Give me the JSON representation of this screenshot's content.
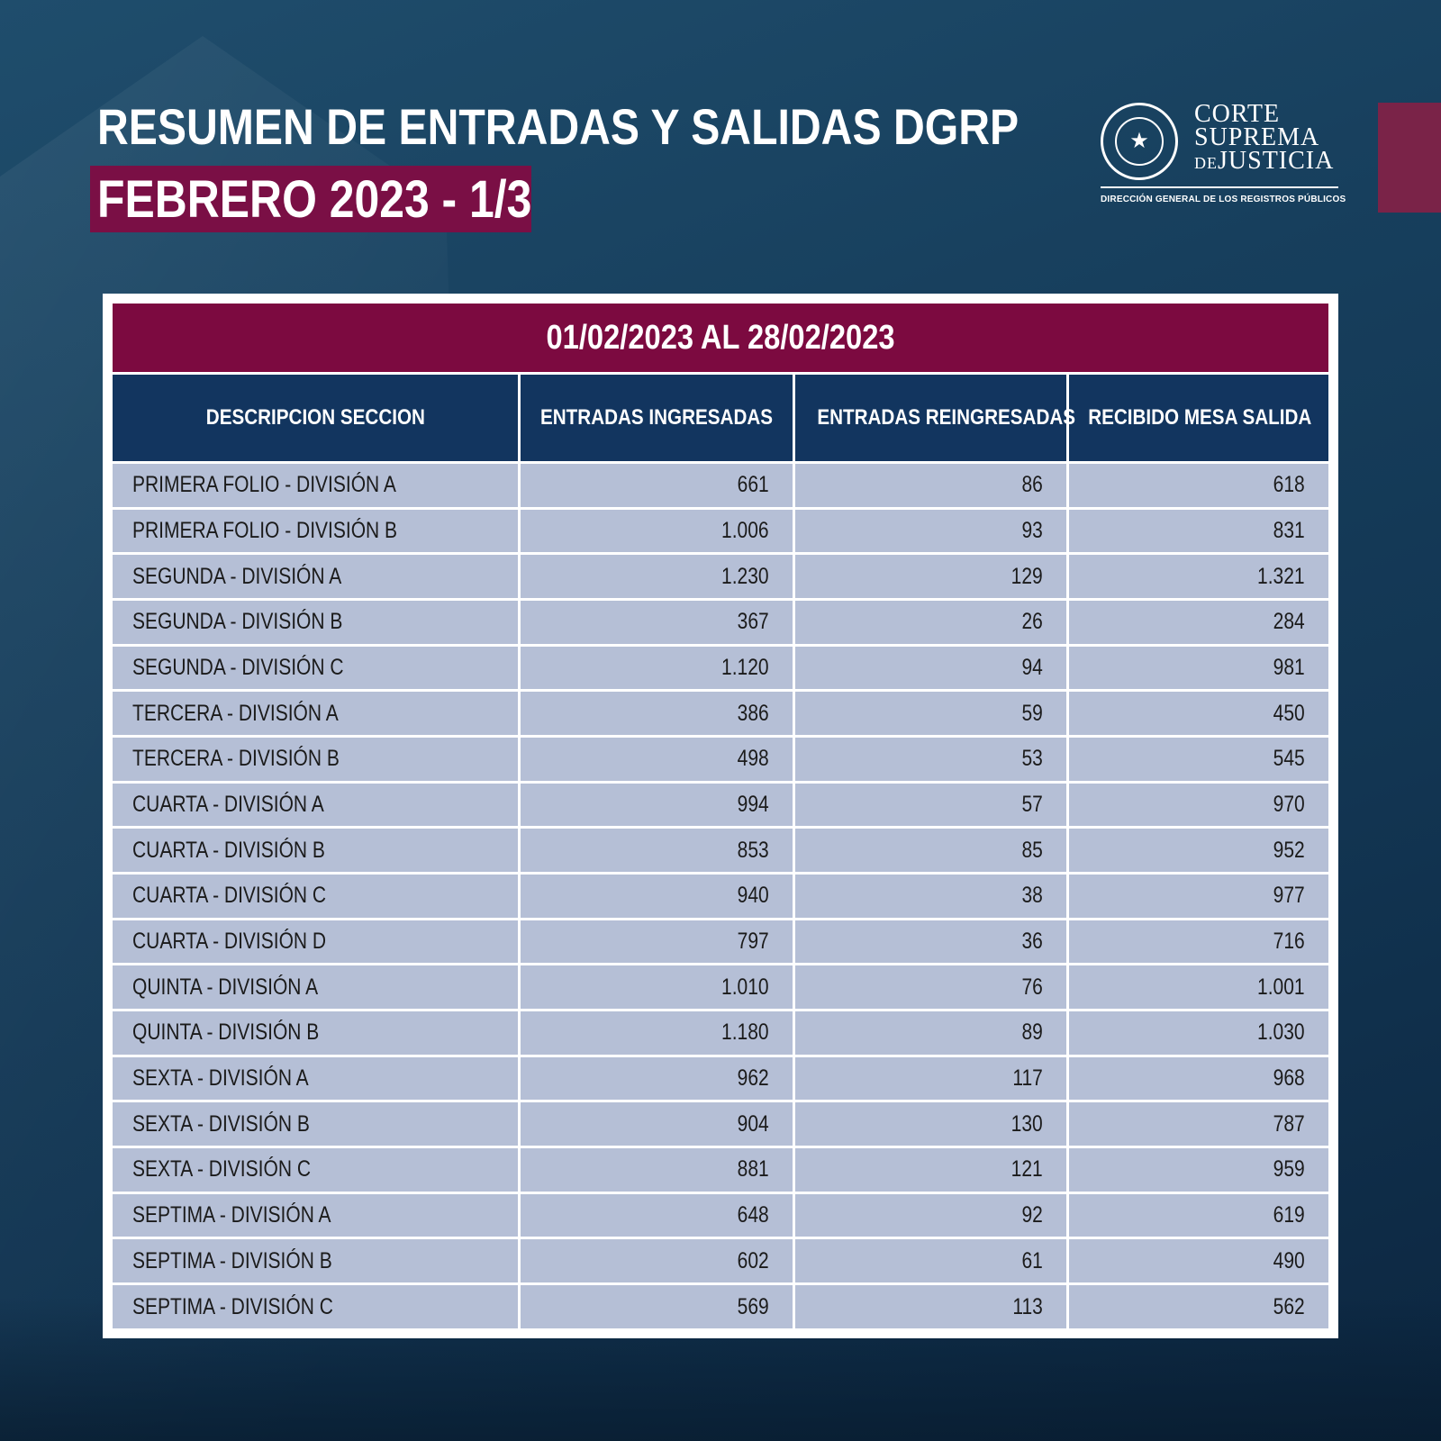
{
  "header": {
    "title_line1": "RESUMEN DE ENTRADAS Y SALIDAS DGRP",
    "title_line2": "FEBRERO 2023 - 1/3"
  },
  "logo": {
    "line1": "CORTE",
    "line2": "SUPREMA",
    "line3_prefix": "DE",
    "line3": "JUSTICIA",
    "subtitle": "DIRECCIÓN GENERAL DE LOS REGISTROS PÚBLICOS",
    "seal_icon": "paraguay-seal-icon"
  },
  "colors": {
    "burgundy": "#7c0a40",
    "navy_header": "#12355f",
    "row_fill": "#b5bfd6",
    "background": "#173f5d"
  },
  "table": {
    "date_range": "01/02/2023 AL 28/02/2023",
    "columns": [
      "DESCRIPCION SECCION",
      "ENTRADAS INGRESADAS",
      "ENTRADAS REINGRESADAS",
      "RECIBIDO MESA SALIDA"
    ],
    "rows": [
      [
        "PRIMERA FOLIO - DIVISIÓN A",
        "661",
        "86",
        "618"
      ],
      [
        "PRIMERA FOLIO - DIVISIÓN B",
        "1.006",
        "93",
        "831"
      ],
      [
        "SEGUNDA - DIVISIÓN A",
        "1.230",
        "129",
        "1.321"
      ],
      [
        "SEGUNDA - DIVISIÓN B",
        "367",
        "26",
        "284"
      ],
      [
        "SEGUNDA - DIVISIÓN C",
        "1.120",
        "94",
        "981"
      ],
      [
        "TERCERA - DIVISIÓN A",
        "386",
        "59",
        "450"
      ],
      [
        "TERCERA - DIVISIÓN B",
        "498",
        "53",
        "545"
      ],
      [
        "CUARTA - DIVISIÓN A",
        "994",
        "57",
        "970"
      ],
      [
        "CUARTA - DIVISIÓN B",
        "853",
        "85",
        "952"
      ],
      [
        "CUARTA - DIVISIÓN C",
        "940",
        "38",
        "977"
      ],
      [
        "CUARTA - DIVISIÓN D",
        "797",
        "36",
        "716"
      ],
      [
        "QUINTA - DIVISIÓN A",
        "1.010",
        "76",
        "1.001"
      ],
      [
        "QUINTA - DIVISIÓN B",
        "1.180",
        "89",
        "1.030"
      ],
      [
        "SEXTA - DIVISIÓN A",
        "962",
        "117",
        "968"
      ],
      [
        "SEXTA - DIVISIÓN B",
        "904",
        "130",
        "787"
      ],
      [
        "SEXTA - DIVISIÓN C",
        "881",
        "121",
        "959"
      ],
      [
        "SEPTIMA - DIVISIÓN A",
        "648",
        "92",
        "619"
      ],
      [
        "SEPTIMA - DIVISIÓN B",
        "602",
        "61",
        "490"
      ],
      [
        "SEPTIMA - DIVISIÓN C",
        "569",
        "113",
        "562"
      ]
    ]
  }
}
